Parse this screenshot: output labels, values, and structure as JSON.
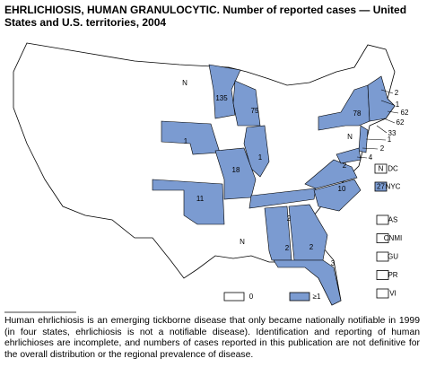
{
  "title": "EHRLICHIOSIS, HUMAN GRANULOCYTIC. Number of reported cases — United States and U.S. territories, 2004",
  "labels": [
    "N",
    135,
    75,
    1,
    18,
    1,
    11,
    "N",
    2,
    10,
    2,
    2,
    2,
    3,
    78,
    2,
    1,
    62,
    62,
    33,
    "N",
    1,
    2,
    4
  ],
  "insets": [
    {
      "value": "N",
      "label": "DC"
    },
    {
      "value": 27,
      "label": "NYC"
    }
  ],
  "territories": [
    "AS",
    "CNMI",
    "GU",
    "PR",
    "VI"
  ],
  "legend": [
    {
      "label": 0
    },
    {
      "label": "≥1"
    }
  ],
  "footnote": "Human ehrlichiosis is an emerging tickborne disease that only became nationally notifiable in 1999 (in four states, ehrlichiosis is not a notifiable disease). Identification and reporting of human ehrlichioses are incomplete, and numbers of cases reported in this publication are not definitive for the overall distribution or the regional prevalence of disease."
}
